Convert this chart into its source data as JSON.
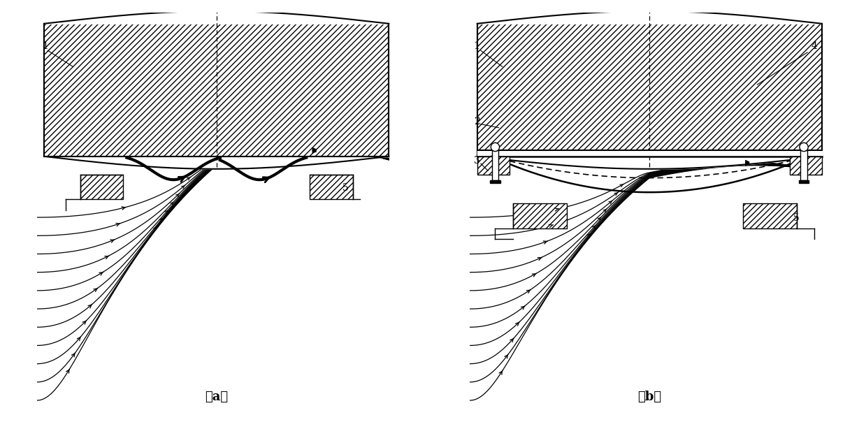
{
  "fig_width": 12.39,
  "fig_height": 6.14,
  "background_color": "#ffffff",
  "label_fontsize": 10,
  "caption_fontsize": 13
}
